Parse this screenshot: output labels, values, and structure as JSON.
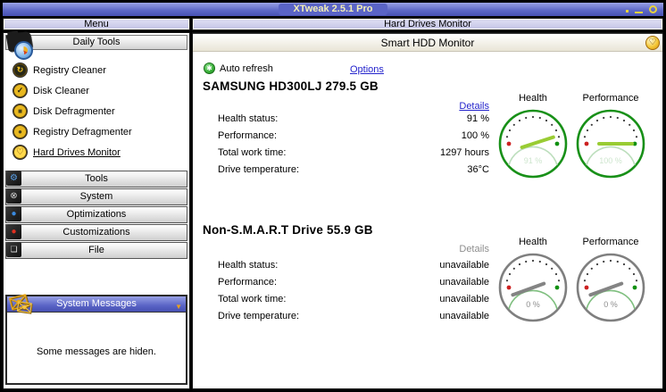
{
  "window": {
    "title": "XTweak 2.5.1 Pro"
  },
  "sidebar": {
    "header": "Menu",
    "daily_tools": {
      "title": "Daily Tools",
      "items": [
        {
          "label": "Registry Cleaner",
          "icon": "registry-cleaner-icon",
          "glyph": "↻"
        },
        {
          "label": "Disk Cleaner",
          "icon": "disk-cleaner-icon",
          "glyph": "✓"
        },
        {
          "label": "Disk Defragmenter",
          "icon": "disk-defragmenter-icon",
          "glyph": "■"
        },
        {
          "label": "Registry Defragmenter",
          "icon": "registry-defragmenter-icon",
          "glyph": "●"
        },
        {
          "label": "Hard Drives Monitor",
          "icon": "hard-drives-monitor-icon",
          "glyph": "♡",
          "active": true
        }
      ]
    },
    "sections": [
      {
        "label": "Tools",
        "glyph": "⚙"
      },
      {
        "label": "System",
        "glyph": "⊗"
      },
      {
        "label": "Optimizations",
        "glyph": "●"
      },
      {
        "label": "Customizations",
        "glyph": "●"
      },
      {
        "label": "File",
        "glyph": "❏"
      }
    ],
    "system_messages": {
      "title": "System Messages",
      "caret": "▼",
      "message": "Some messages are hiden."
    }
  },
  "main": {
    "header": "Hard Drives Monitor",
    "subheader": "Smart HDD Monitor",
    "heart_glyph": "♡",
    "auto_refresh_label": "Auto refresh",
    "auto_refresh_glyph": "✱",
    "options_label": "Options",
    "drives": [
      {
        "name": "SAMSUNG HD300LJ 279.5 GB",
        "details_label": "Details",
        "details_enabled": true,
        "rows": [
          {
            "label": "Health status:",
            "value": "91 %"
          },
          {
            "label": "Performance:",
            "value": "100 %"
          },
          {
            "label": "Total work time:",
            "value": "1297 hours"
          },
          {
            "label": "Drive temperature:",
            "value": "36°C"
          }
        ],
        "gauges": [
          {
            "label": "Health",
            "percent": 91,
            "display": "91 %",
            "active": true
          },
          {
            "label": "Performance",
            "percent": 100,
            "display": "100 %",
            "active": true
          }
        ]
      },
      {
        "name": "Non-S.M.A.R.T Drive 55.9 GB",
        "details_label": "Details",
        "details_enabled": false,
        "rows": [
          {
            "label": "Health status:",
            "value": "unavailable"
          },
          {
            "label": "Performance:",
            "value": "unavailable"
          },
          {
            "label": "Total work time:",
            "value": "unavailable"
          },
          {
            "label": "Drive temperature:",
            "value": "unavailable"
          }
        ],
        "gauges": [
          {
            "label": "Health",
            "percent": 0,
            "display": "0 %",
            "active": false
          },
          {
            "label": "Performance",
            "percent": 0,
            "display": "0 %",
            "active": false
          }
        ]
      }
    ]
  },
  "colors": {
    "titlebar_top": "#9aa2e6",
    "titlebar_bottom": "#4650b2",
    "title_text": "#f2eeb6",
    "window_control_yellow": "#e8d23c",
    "panel_header_bg": "#ccccec",
    "link_blue": "#2424cc",
    "details_disabled": "#8e8e8e",
    "gauge_active_ring": "#189018",
    "gauge_inactive_ring": "#7f7f7f",
    "gauge_active_needle": "#99cc33",
    "gauge_inactive_needle": "#848484",
    "gauge_active_arc": "#bcdebc",
    "gauge_inactive_arc": "#7fbf7f",
    "gauge_active_text": "#cfe6cf",
    "gauge_inactive_text": "#8e8e8e",
    "gauge_min_dot": "#cc2020",
    "gauge_max_dot": "#109010",
    "gauge_tick": "#3c3c3c"
  }
}
